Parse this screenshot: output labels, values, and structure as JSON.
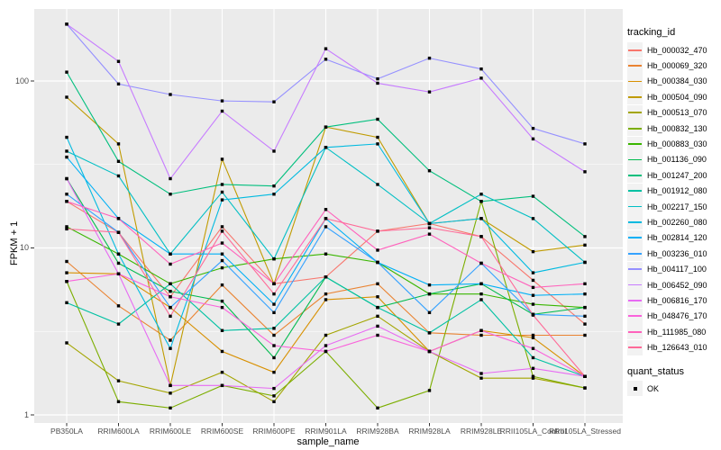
{
  "chart_data": {
    "type": "line",
    "title": "",
    "xlabel": "sample_name",
    "ylabel": "FPKM + 1",
    "y_scale": "log10",
    "y_ticks": [
      1,
      10,
      100
    ],
    "y_tick_labels": [
      "1",
      "10",
      "100"
    ],
    "ylim": [
      1,
      300
    ],
    "grid": "white major + half-decade minor on gray panel",
    "legend_position": "right",
    "legend_title": "tracking_id",
    "quant_legend_title": "quant_status",
    "quant_status_label": "OK",
    "point_shape": "black-square",
    "categories": [
      "PB350LA",
      "RRIM600LA",
      "RRIM600LE",
      "RRIM600SE",
      "RRIM600PE",
      "RRIM901LA",
      "RRIM928BA",
      "RRIM928LA",
      "RRIM928LE",
      "RRII105LA_Control",
      "RRII105LA_Stressed"
    ],
    "series": [
      {
        "name": "Hb_000032_470",
        "color": "#F8766D",
        "values": [
          19,
          12.4,
          5.1,
          13.4,
          6.1,
          6.7,
          12.6,
          14,
          11.7,
          6.4,
          3.5
        ]
      },
      {
        "name": "Hb_000069_320",
        "color": "#EA8331",
        "values": [
          8.3,
          4.5,
          2.8,
          6,
          3,
          5.3,
          6.1,
          3.1,
          3,
          3,
          3
        ]
      },
      {
        "name": "Hb_000384_030",
        "color": "#D89000",
        "values": [
          7.1,
          7,
          4.4,
          2.4,
          1.8,
          4.9,
          5.1,
          2.4,
          3.2,
          2.9,
          1.7
        ]
      },
      {
        "name": "Hb_000504_090",
        "color": "#C09B00",
        "values": [
          80,
          42,
          1.5,
          34,
          6.1,
          53,
          46,
          14,
          15,
          9.5,
          10.4
        ]
      },
      {
        "name": "Hb_000513_070",
        "color": "#A3A500",
        "values": [
          2.7,
          1.6,
          1.35,
          1.8,
          1.2,
          3,
          3.9,
          2.4,
          1.66,
          1.66,
          1.45
        ]
      },
      {
        "name": "Hb_000832_130",
        "color": "#7CAE00",
        "values": [
          6.3,
          1.2,
          1.1,
          1.5,
          1.3,
          2.4,
          1.1,
          1.4,
          19,
          1.7,
          1.45
        ]
      },
      {
        "name": "Hb_000883_030",
        "color": "#39B600",
        "values": [
          13.4,
          9.2,
          6.1,
          7.6,
          8.6,
          9.2,
          8.2,
          5.3,
          5.3,
          4.6,
          4.4
        ]
      },
      {
        "name": "Hb_001136_090",
        "color": "#00BB4E",
        "values": [
          26,
          8.1,
          5.5,
          4.8,
          2.2,
          6.7,
          4.4,
          5.3,
          6.1,
          4,
          4.4
        ]
      },
      {
        "name": "Hb_001247_200",
        "color": "#00BF7D",
        "values": [
          113,
          33,
          21,
          24,
          23.5,
          53,
          59,
          29,
          19,
          20.4,
          11.7
        ]
      },
      {
        "name": "Hb_001912_080",
        "color": "#00C1A3",
        "values": [
          4.7,
          3.5,
          6.1,
          3.2,
          3.3,
          6.7,
          4.4,
          3.1,
          4.9,
          2.2,
          1.7
        ]
      },
      {
        "name": "Hb_002217_150",
        "color": "#00BFC4",
        "values": [
          38,
          27,
          9.2,
          21.6,
          8.6,
          40,
          24,
          14,
          21,
          15,
          8.2
        ]
      },
      {
        "name": "Hb_002260_080",
        "color": "#00BAE0",
        "values": [
          46,
          9.2,
          2.5,
          19.4,
          21,
          40,
          42,
          14,
          15,
          7.1,
          8.2
        ]
      },
      {
        "name": "Hb_002814_120",
        "color": "#00B0F6",
        "values": [
          35,
          15,
          9.2,
          9.2,
          4.6,
          15,
          8.2,
          6,
          6.1,
          5.2,
          5.3
        ]
      },
      {
        "name": "Hb_003236_010",
        "color": "#35A2FF",
        "values": [
          21,
          12.4,
          4.4,
          8.4,
          4.1,
          13.4,
          8.2,
          4.1,
          8.1,
          4,
          3.9
        ]
      },
      {
        "name": "Hb_004117_100",
        "color": "#9590FF",
        "values": [
          219,
          96,
          83,
          76,
          75,
          135,
          103,
          137,
          118,
          52,
          42
        ]
      },
      {
        "name": "Hb_006452_090",
        "color": "#C77CFF",
        "values": [
          219,
          131,
          26,
          66,
          38,
          156,
          97,
          86,
          104,
          45,
          28.6
        ]
      },
      {
        "name": "Hb_006816_170",
        "color": "#E76BF3",
        "values": [
          26,
          7,
          1.5,
          1.5,
          1.44,
          2.6,
          3.4,
          2.4,
          1.77,
          1.9,
          1.7
        ]
      },
      {
        "name": "Hb_048476_170",
        "color": "#FA62DB",
        "values": [
          6.3,
          7,
          5.1,
          4.4,
          2.6,
          2.4,
          3,
          2.4,
          3.2,
          2.5,
          1.7
        ]
      },
      {
        "name": "Hb_111985_080",
        "color": "#FF62BC",
        "values": [
          19,
          15,
          8,
          10.7,
          6.1,
          17,
          9.7,
          12.1,
          8.1,
          5.8,
          6.1
        ]
      },
      {
        "name": "Hb_126643_010",
        "color": "#FF6A98",
        "values": [
          13,
          12.4,
          3.9,
          12.6,
          5.3,
          15,
          12.6,
          13.2,
          11.7,
          3.96,
          1.7
        ]
      }
    ],
    "style": {
      "panel_bg": "#EBEBEB",
      "grid_color": "#FFFFFF",
      "point_color": "#000000",
      "legend_key_bg": "#F2F2F2",
      "tick_text_color": "#4D4D4D",
      "tick_mark_color": "#333333"
    }
  }
}
